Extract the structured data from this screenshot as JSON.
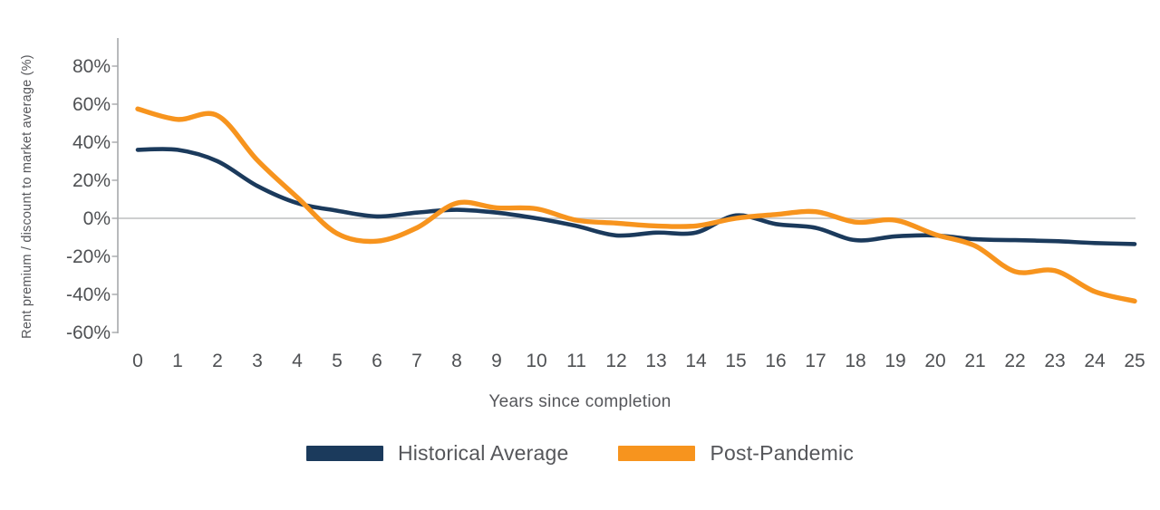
{
  "chart_data": {
    "type": "line",
    "title": "",
    "xlabel": "Years since completion",
    "ylabel": "Rent premium / discount to market average (%)",
    "x": [
      0,
      1,
      2,
      3,
      4,
      5,
      6,
      7,
      8,
      9,
      10,
      11,
      12,
      13,
      14,
      15,
      16,
      17,
      18,
      19,
      20,
      21,
      22,
      23,
      24,
      25
    ],
    "x_tick_labels": [
      "0",
      "1",
      "2",
      "3",
      "4",
      "5",
      "6",
      "7",
      "8",
      "9",
      "10",
      "11",
      "12",
      "13",
      "14",
      "15",
      "16",
      "17",
      "18",
      "19",
      "20",
      "21",
      "22",
      "23",
      "24",
      "25"
    ],
    "y_ticks": [
      80,
      60,
      40,
      20,
      0,
      -20,
      -40,
      -60
    ],
    "y_tick_labels": [
      "80%",
      "60%",
      "40%",
      "20%",
      "0%",
      "-20%",
      "-40%",
      "-60%"
    ],
    "xlim": [
      0,
      25
    ],
    "ylim": [
      -60,
      95
    ],
    "grid": "zero-line-only",
    "legend_position": "bottom-center",
    "series": [
      {
        "name": "Historical Average",
        "color": "#1b3a5c",
        "values": [
          36,
          36,
          30,
          17,
          8,
          4,
          1,
          3,
          4.5,
          3,
          0,
          -4,
          -9,
          -7.5,
          -7.5,
          1.5,
          -3,
          -5,
          -11.5,
          -9.5,
          -9,
          -11,
          -11.5,
          -12,
          -13,
          -13.5
        ]
      },
      {
        "name": "Post-Pandemic",
        "color": "#f7941e",
        "values": [
          57.5,
          52,
          54,
          30.5,
          11,
          -8,
          -12,
          -5,
          8,
          5.5,
          5,
          -1,
          -2.5,
          -4,
          -4,
          0,
          2,
          3.5,
          -2,
          -1,
          -8.5,
          -14.5,
          -28,
          -27.5,
          -38.5,
          -43.5
        ]
      }
    ],
    "style_colors": {
      "axis_line": "#a6a8ab",
      "zero_line": "#c7c8ca",
      "tick_text": "#4f5154",
      "axis_title_text": "#55565a"
    }
  }
}
